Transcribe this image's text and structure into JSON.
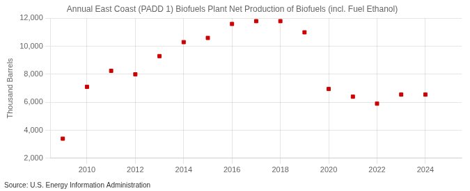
{
  "chart_data": {
    "type": "scatter",
    "title": "Annual East Coast (PADD 1) Biofuels Plant Net Production of Biofuels (incl. Fuel Ethanol)",
    "ylabel": "Thousand Barrels",
    "annotations": [
      "Source: U.S. Energy Information Administration"
    ],
    "x": [
      2009,
      2010,
      2011,
      2012,
      2013,
      2014,
      2015,
      2016,
      2017,
      2018,
      2019,
      2020,
      2021,
      2022,
      2023,
      2024
    ],
    "values": [
      3400,
      7100,
      8250,
      8000,
      9300,
      10300,
      10600,
      11600,
      11800,
      11800,
      11000,
      6950,
      6400,
      5900,
      6550,
      6550
    ],
    "color": "#cc0000",
    "marker": "square",
    "xlim": [
      2008.5,
      2025.5
    ],
    "xticks": [
      2010,
      2012,
      2014,
      2016,
      2018,
      2020,
      2022,
      2024
    ],
    "ylim": [
      2000,
      12000
    ],
    "yticks": [
      {
        "value": 2000,
        "label": "2,000"
      },
      {
        "value": 4000,
        "label": "4,000"
      },
      {
        "value": 6000,
        "label": "6,000"
      },
      {
        "value": 8000,
        "label": "8,000"
      },
      {
        "value": 10000,
        "label": "10,000"
      },
      {
        "value": 12000,
        "label": "12,000"
      }
    ],
    "grid": true
  }
}
